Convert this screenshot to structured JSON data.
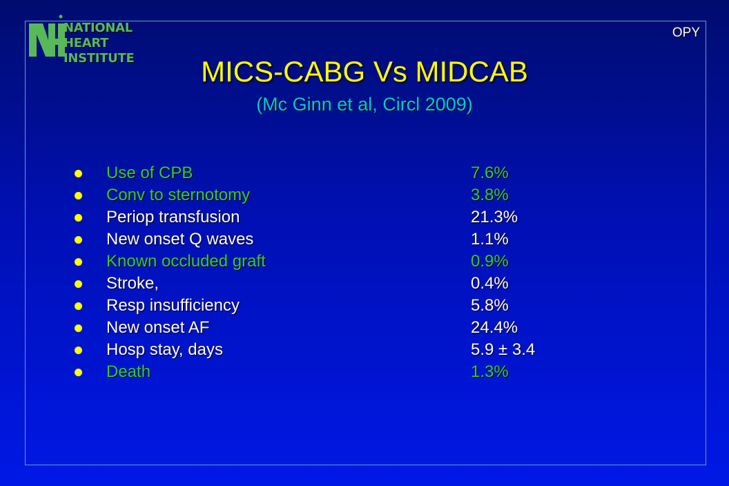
{
  "logo": {
    "lines": [
      "NATIONAL",
      "HEART",
      "INSTITUTE"
    ],
    "color": "#58b95a"
  },
  "corner_text": "OPY",
  "title": "MICS-CABG Vs MIDCAB",
  "subtitle": "(Mc Ginn et al, Circl 2009)",
  "colors": {
    "background": "#0010b4",
    "title": "#ffff00",
    "subtitle": "#00cccc",
    "bullet": "#ffff00",
    "highlight": "#33cc33",
    "text": "#ffffff"
  },
  "rows": [
    {
      "label": "Use of CPB",
      "value": "7.6%",
      "highlight": true
    },
    {
      "label": "Conv to sternotomy",
      "value": "3.8%",
      "highlight": true
    },
    {
      "label": "Periop transfusion",
      "value": "21.3%",
      "highlight": false
    },
    {
      "label": "New onset Q waves",
      "value": "1.1%",
      "highlight": false
    },
    {
      "label": "Known occluded graft",
      "value": "0.9%",
      "highlight": true
    },
    {
      "label": "Stroke,",
      "value": "0.4%",
      "highlight": false
    },
    {
      "label": "Resp insufficiency",
      "value": "5.8%",
      "highlight": false
    },
    {
      "label": "New onset AF",
      "value": "24.4%",
      "highlight": false
    },
    {
      "label": "Hosp stay, days",
      "value": "5.9 ± 3.4",
      "highlight": false
    },
    {
      "label": "Death",
      "value": "1.3%",
      "highlight": true
    }
  ]
}
